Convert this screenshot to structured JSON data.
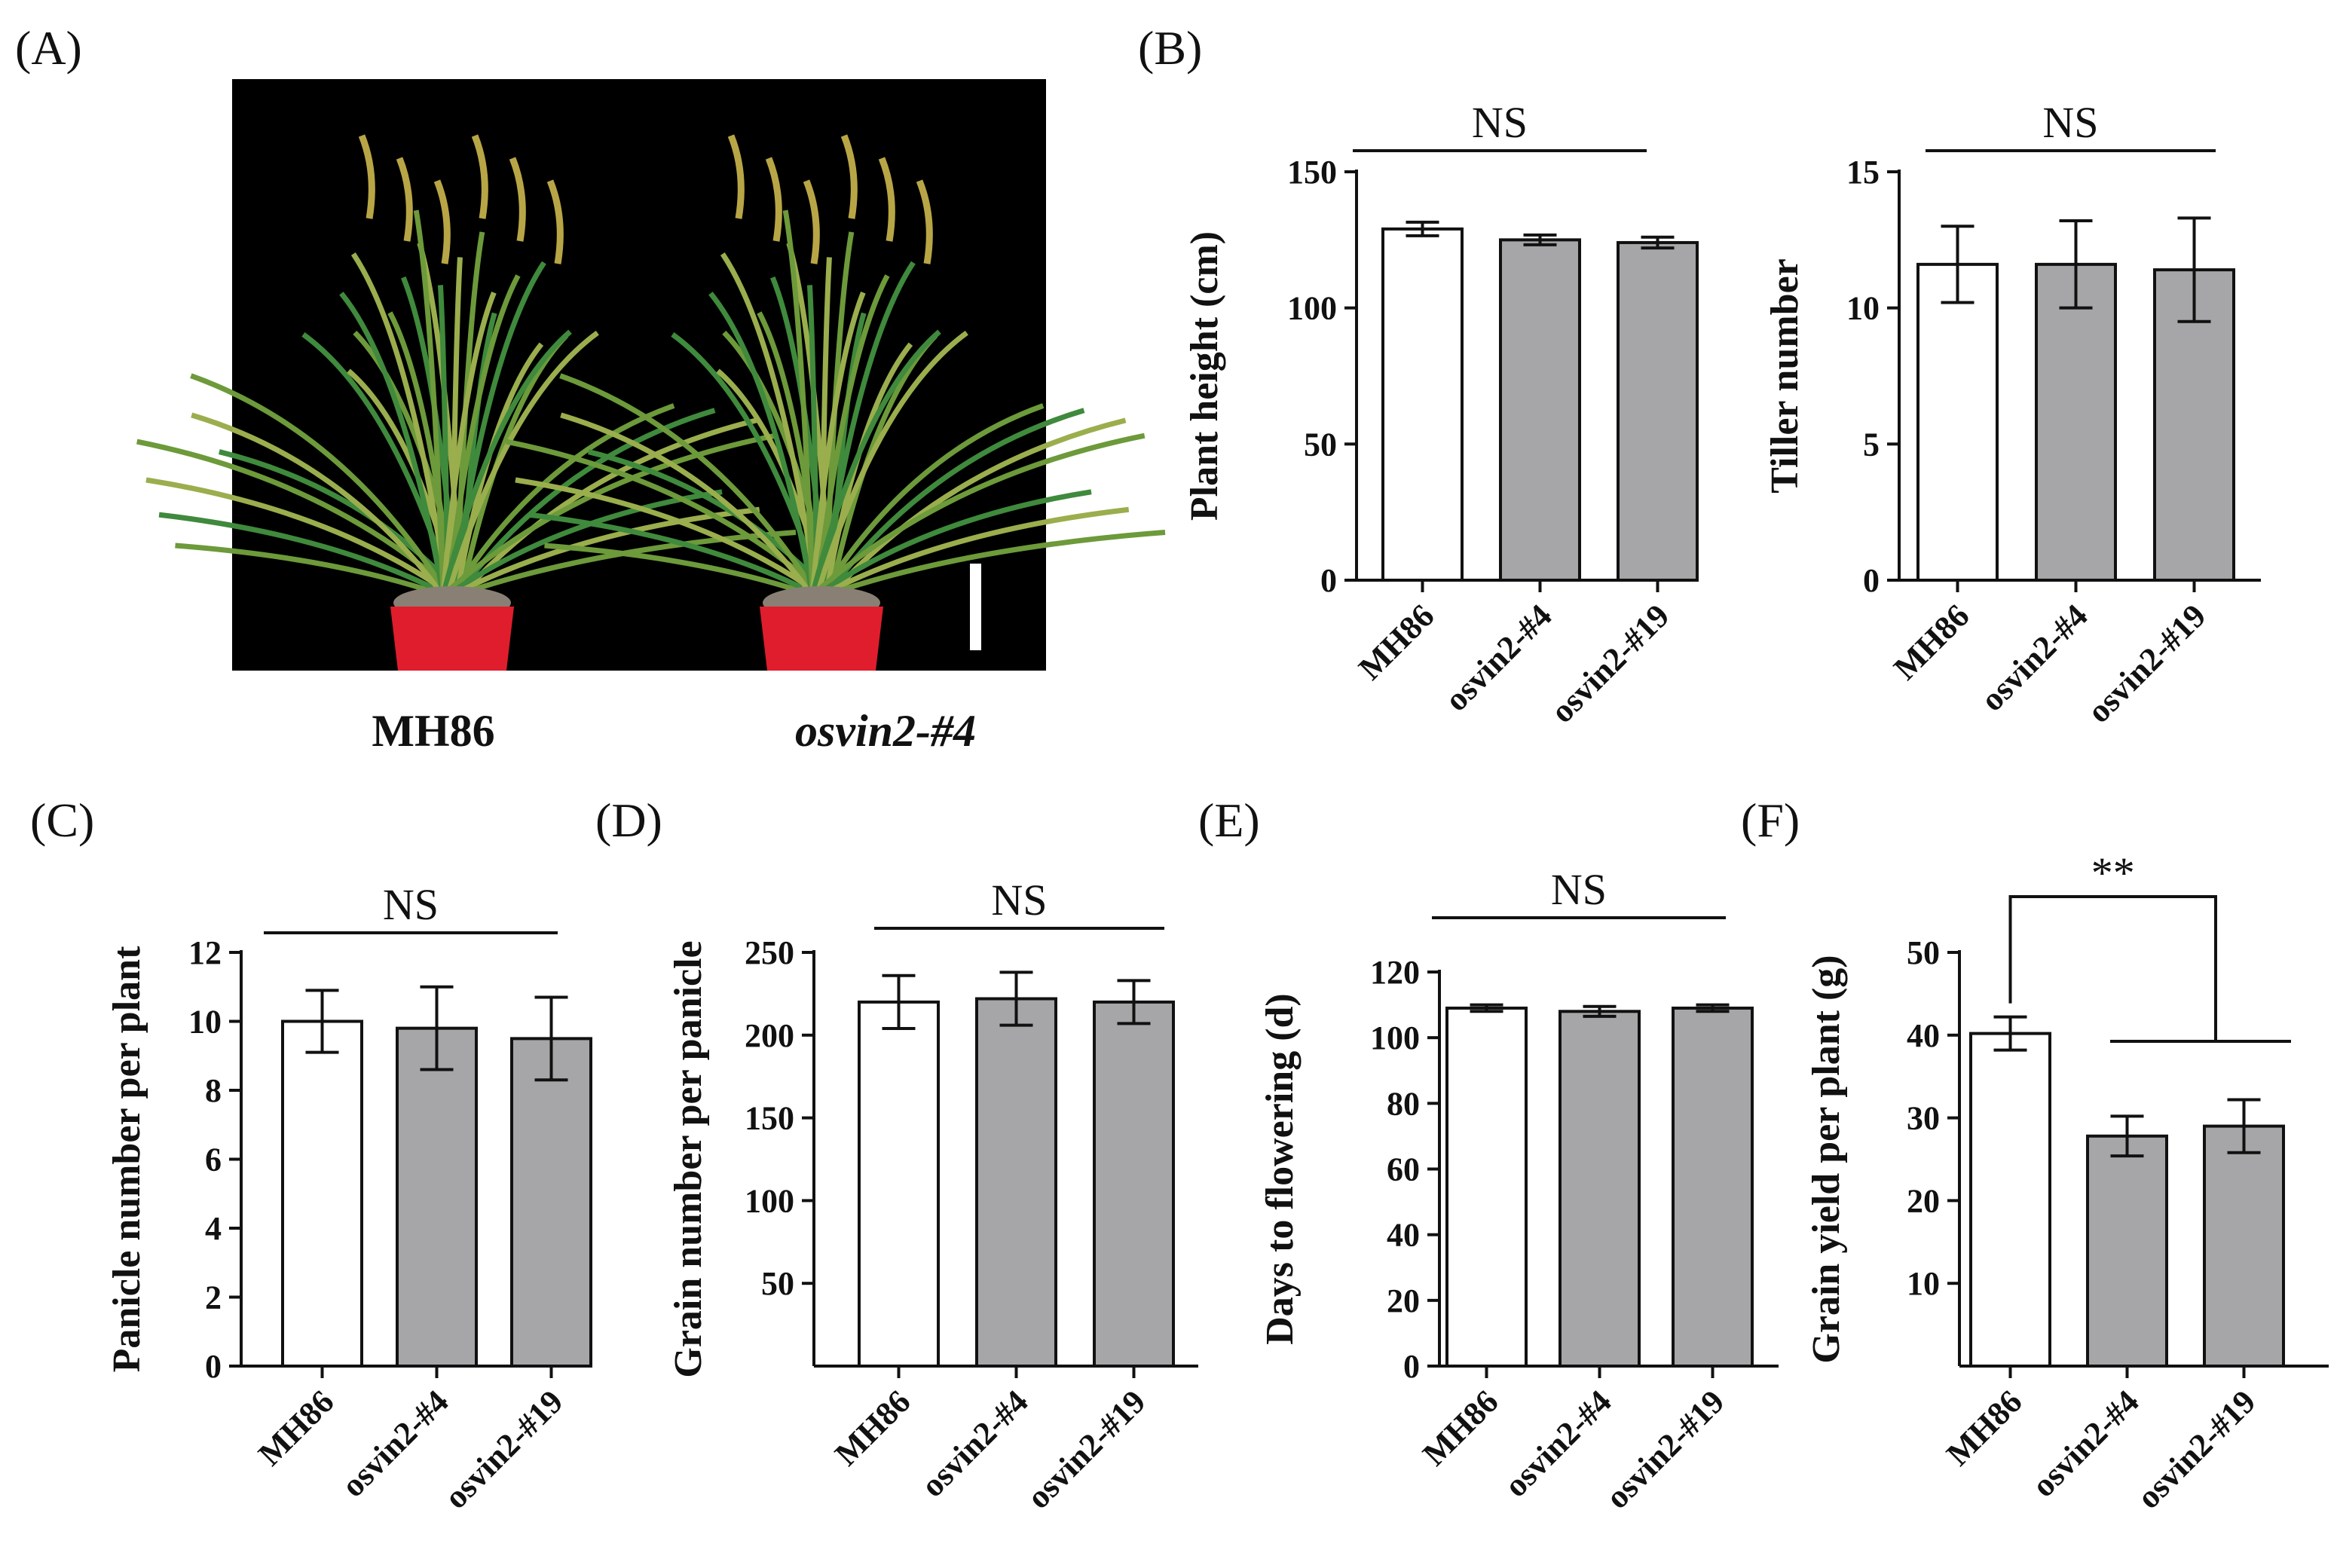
{
  "panel_a": {
    "label": "(A)",
    "plant_labels": [
      "MH86",
      "osvin2-#4"
    ]
  },
  "colors": {
    "control_bar": "#ffffff",
    "mutant_bar": "#a6a6a9",
    "photo_bg": "#000000",
    "pot": "#e01d2c"
  },
  "chart_data": [
    {
      "panel": "(B)",
      "type": "bar",
      "ylabel": "Plant height (cm)",
      "categories": [
        "MH86",
        "osvin2-#4",
        "osvin2-#19"
      ],
      "values": [
        129,
        125,
        124
      ],
      "errors": [
        2.5,
        1.8,
        2.0
      ],
      "ylim": [
        0,
        150
      ],
      "yticks": [
        0,
        50,
        100,
        150
      ],
      "significance": "NS"
    },
    {
      "panel": "",
      "type": "bar",
      "ylabel": "Tiller number",
      "categories": [
        "MH86",
        "osvin2-#4",
        "osvin2-#19"
      ],
      "values": [
        11.6,
        11.6,
        11.4
      ],
      "errors": [
        1.4,
        1.6,
        1.9
      ],
      "ylim": [
        0,
        15
      ],
      "yticks": [
        0,
        5,
        10,
        15
      ],
      "significance": "NS"
    },
    {
      "panel": "(C)",
      "type": "bar",
      "ylabel": "Panicle number per plant",
      "categories": [
        "MH86",
        "osvin2-#4",
        "osvin2-#19"
      ],
      "values": [
        10.0,
        9.8,
        9.5
      ],
      "errors": [
        0.9,
        1.2,
        1.2
      ],
      "ylim": [
        0,
        12
      ],
      "yticks": [
        0,
        2,
        4,
        6,
        8,
        10,
        12
      ],
      "significance": "NS"
    },
    {
      "panel": "(D)",
      "type": "bar",
      "ylabel": "Grain number per panicle",
      "categories": [
        "MH86",
        "osvin2-#4",
        "osvin2-#19"
      ],
      "values": [
        220,
        222,
        220
      ],
      "errors": [
        16,
        16,
        13
      ],
      "ylim": [
        0,
        250
      ],
      "yticks": [
        50,
        100,
        150,
        200,
        250
      ],
      "significance": "NS"
    },
    {
      "panel": "(E)",
      "type": "bar",
      "ylabel": "Days to flowering (d)",
      "categories": [
        "MH86",
        "osvin2-#4",
        "osvin2-#19"
      ],
      "values": [
        109,
        108,
        109
      ],
      "errors": [
        1,
        1.5,
        1
      ],
      "ylim": [
        0,
        120
      ],
      "yticks": [
        0,
        20,
        40,
        60,
        80,
        100,
        120
      ],
      "significance": "NS"
    },
    {
      "panel": "(F)",
      "type": "bar",
      "ylabel": "Grain yield per plant (g)",
      "categories": [
        "MH86",
        "osvin2-#4",
        "osvin2-#19"
      ],
      "values": [
        40.2,
        27.8,
        29.0
      ],
      "errors": [
        2.0,
        2.4,
        3.2
      ],
      "ylim": [
        0,
        50
      ],
      "yticks": [
        10,
        20,
        30,
        40,
        50
      ],
      "significance": "**"
    }
  ]
}
